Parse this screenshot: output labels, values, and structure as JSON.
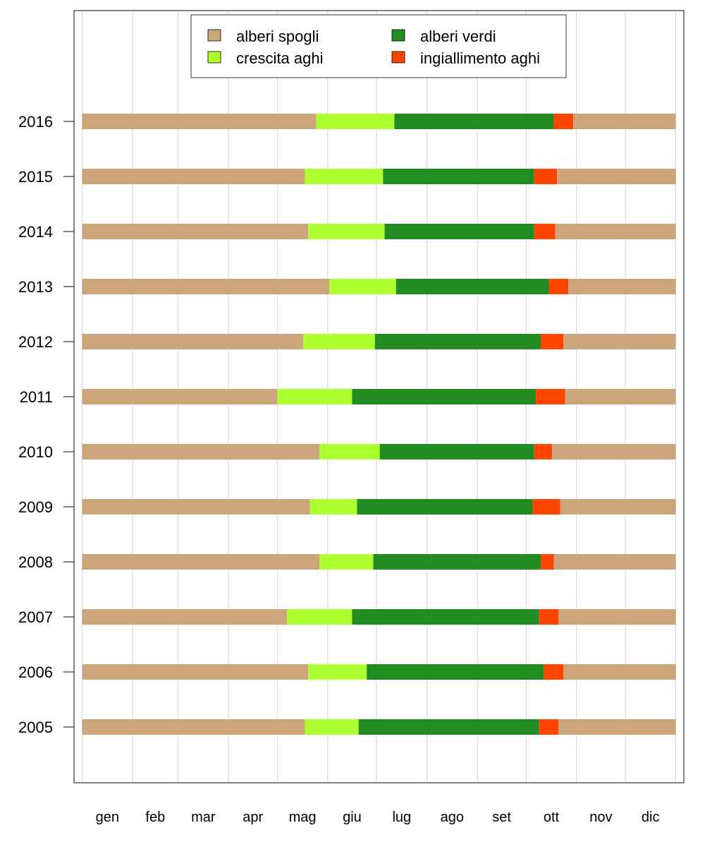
{
  "chart_data": {
    "type": "bar",
    "subtype": "stacked-horizontal-timeline",
    "title": "",
    "xlabel": "",
    "ylabel": "",
    "x_unit": "day of year",
    "xlim": [
      -4,
      371
    ],
    "months": [
      "gen",
      "feb",
      "mar",
      "apr",
      "mag",
      "giu",
      "lug",
      "ago",
      "set",
      "ott",
      "nov",
      "dic"
    ],
    "month_starts": [
      1,
      32,
      60,
      91,
      121,
      152,
      182,
      213,
      244,
      274,
      305,
      335,
      366
    ],
    "legend": {
      "position": "top",
      "entries": [
        {
          "key": "spogli",
          "label": "alberi spogli",
          "color": "#cca67a"
        },
        {
          "key": "verdi",
          "label": "alberi verdi",
          "color": "#228b22"
        },
        {
          "key": "crescita",
          "label": "crescita aghi",
          "color": "#adff2f"
        },
        {
          "key": "ingiallimento",
          "label": "ingiallimento aghi",
          "color": "#ff4500"
        }
      ]
    },
    "series": [
      {
        "year": "2016",
        "crescita_start": 145,
        "verdi_start": 193,
        "ingiallimento_start": 291,
        "spogli_start": 303
      },
      {
        "year": "2015",
        "crescita_start": 138,
        "verdi_start": 186,
        "ingiallimento_start": 279,
        "spogli_start": 293
      },
      {
        "year": "2014",
        "crescita_start": 140,
        "verdi_start": 187,
        "ingiallimento_start": 279,
        "spogli_start": 292
      },
      {
        "year": "2013",
        "crescita_start": 153,
        "verdi_start": 194,
        "ingiallimento_start": 288,
        "spogli_start": 300
      },
      {
        "year": "2012",
        "crescita_start": 137,
        "verdi_start": 181,
        "ingiallimento_start": 283,
        "spogli_start": 297
      },
      {
        "year": "2011",
        "crescita_start": 121,
        "verdi_start": 167,
        "ingiallimento_start": 280,
        "spogli_start": 298
      },
      {
        "year": "2010",
        "crescita_start": 147,
        "verdi_start": 184,
        "ingiallimento_start": 279,
        "spogli_start": 290
      },
      {
        "year": "2009",
        "crescita_start": 141,
        "verdi_start": 170,
        "ingiallimento_start": 278,
        "spogli_start": 295
      },
      {
        "year": "2008",
        "crescita_start": 147,
        "verdi_start": 180,
        "ingiallimento_start": 283,
        "spogli_start": 291
      },
      {
        "year": "2007",
        "crescita_start": 127,
        "verdi_start": 167,
        "ingiallimento_start": 282,
        "spogli_start": 294
      },
      {
        "year": "2006",
        "crescita_start": 140,
        "verdi_start": 176,
        "ingiallimento_start": 285,
        "spogli_start": 297
      },
      {
        "year": "2005",
        "crescita_start": 138,
        "verdi_start": 171,
        "ingiallimento_start": 282,
        "spogli_start": 294
      }
    ],
    "year_end": 366,
    "grid": "vertical at month starts"
  }
}
